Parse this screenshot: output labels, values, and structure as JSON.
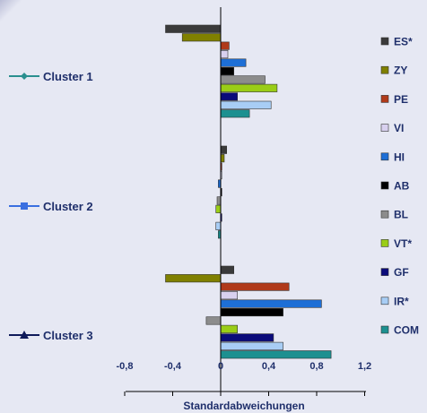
{
  "chart_data": {
    "type": "bar",
    "orientation": "horizontal",
    "xlabel": "Standardabweichungen",
    "xlim": [
      -0.8,
      1.2
    ],
    "ticks": [
      -0.8,
      -0.4,
      0,
      0.4,
      0.8,
      1.2
    ],
    "tick_labels": [
      "-0,8",
      "-0,4",
      "0",
      "0,4",
      "0,8",
      "1,2"
    ],
    "grid": false,
    "legend_position": "right",
    "clusters": [
      {
        "label": "Cluster 1",
        "marker": "diamond",
        "color": "#2a8f8f"
      },
      {
        "label": "Cluster 2",
        "marker": "square",
        "color": "#3a6fe0"
      },
      {
        "label": "Cluster 3",
        "marker": "triangle",
        "color": "#0f1a5a"
      }
    ],
    "series": [
      {
        "name": "ES*",
        "color": "#3a3a3a",
        "values": [
          -0.46,
          0.05,
          0.11
        ]
      },
      {
        "name": "ZY",
        "color": "#808000",
        "values": [
          -0.32,
          0.03,
          -0.46
        ]
      },
      {
        "name": "PE",
        "color": "#b03a1a",
        "values": [
          0.07,
          0.01,
          0.57
        ]
      },
      {
        "name": "VI",
        "color": "#d8d0ef",
        "values": [
          0.06,
          0.0,
          0.14
        ]
      },
      {
        "name": "HI",
        "color": "#1e6fd6",
        "values": [
          0.21,
          -0.02,
          0.84
        ]
      },
      {
        "name": "AB",
        "color": "#000000",
        "values": [
          0.11,
          0.01,
          0.52
        ]
      },
      {
        "name": "BL",
        "color": "#8c8c8c",
        "values": [
          0.37,
          -0.03,
          -0.12
        ]
      },
      {
        "name": "VT*",
        "color": "#9acd16",
        "values": [
          0.47,
          -0.04,
          0.14
        ]
      },
      {
        "name": "GF",
        "color": "#0b0b7a",
        "values": [
          0.14,
          0.01,
          0.44
        ]
      },
      {
        "name": "IR*",
        "color": "#a8cdf5",
        "values": [
          0.42,
          -0.04,
          0.52
        ]
      },
      {
        "name": "COM",
        "color": "#1c9090",
        "values": [
          0.24,
          -0.02,
          0.92
        ]
      }
    ]
  }
}
